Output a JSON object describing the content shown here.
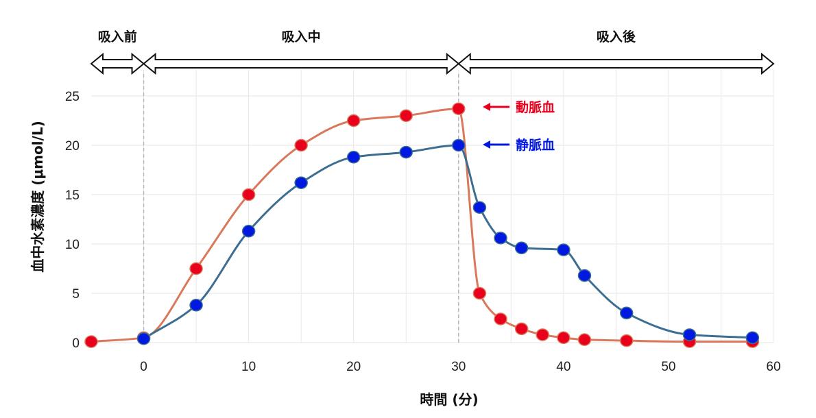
{
  "chart_data": {
    "type": "line",
    "xlabel": "時間 (分)",
    "ylabel": "血中水素濃度 (μmol/L)",
    "xlim": [
      -5,
      60
    ],
    "ylim": [
      0,
      25
    ],
    "x_ticks": [
      "0",
      "10",
      "20",
      "30",
      "40",
      "50",
      "60"
    ],
    "y_ticks": [
      "0",
      "5",
      "10",
      "15",
      "20",
      "25"
    ],
    "grid": true,
    "phases": [
      {
        "label": "吸入前",
        "start": -5,
        "end": 0
      },
      {
        "label": "吸入中",
        "start": 0,
        "end": 30
      },
      {
        "label": "吸入後",
        "start": 30,
        "end": 60
      }
    ],
    "series": [
      {
        "name": "動脈血",
        "color": "#e8001c",
        "line_color": "#d9785a",
        "x": [
          -5,
          0,
          5,
          10,
          15,
          20,
          25,
          30,
          32,
          34,
          36,
          38,
          40,
          42,
          46,
          52,
          58
        ],
        "values": [
          0.1,
          0.5,
          7.5,
          15.0,
          20.0,
          22.5,
          23.0,
          23.7,
          5.0,
          2.4,
          1.4,
          0.8,
          0.5,
          0.3,
          0.2,
          0.1,
          0.1
        ]
      },
      {
        "name": "静脈血",
        "color": "#0018e0",
        "line_color": "#3d6e91",
        "x": [
          0,
          5,
          10,
          15,
          20,
          25,
          30,
          32,
          34,
          36,
          40,
          42,
          46,
          52,
          58
        ],
        "values": [
          0.4,
          3.8,
          11.3,
          16.2,
          18.8,
          19.3,
          20.0,
          13.7,
          10.6,
          9.6,
          9.4,
          6.8,
          3.0,
          0.8,
          0.5
        ]
      }
    ]
  }
}
